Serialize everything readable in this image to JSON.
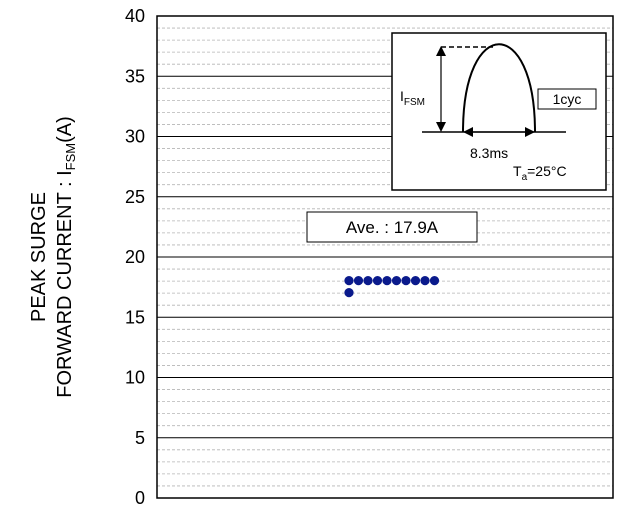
{
  "chart_data": {
    "type": "scatter",
    "title": "",
    "ylabel_line1": "PEAK SURGE",
    "ylabel_line2_main": "FORWARD CURRENT : I",
    "ylabel_line2_sub": "FSM",
    "ylabel_line2_unit": "(A)",
    "ylim": [
      0,
      40
    ],
    "yticks": [
      "0",
      "5",
      "10",
      "15",
      "20",
      "25",
      "30",
      "35",
      "40"
    ],
    "grid": true,
    "series": [
      {
        "points": [
          {
            "x": 1,
            "y": 17
          },
          {
            "x": 1,
            "y": 18
          },
          {
            "x": 2,
            "y": 18
          },
          {
            "x": 3,
            "y": 18
          },
          {
            "x": 4,
            "y": 18
          },
          {
            "x": 5,
            "y": 18
          },
          {
            "x": 6,
            "y": 18
          },
          {
            "x": 7,
            "y": 18
          },
          {
            "x": 8,
            "y": 18
          },
          {
            "x": 9,
            "y": 18
          },
          {
            "x": 10,
            "y": 18
          }
        ]
      }
    ],
    "marker_color": "#0a1a8c",
    "average_label": "Ave. : 17.9A",
    "inset": {
      "ifsm_main": "I",
      "ifsm_sub": "FSM",
      "cycle_label": "1cyc",
      "time_label": "8.3ms",
      "ta_main": "T",
      "ta_sub": "a",
      "ta_value": "=25°C"
    }
  }
}
